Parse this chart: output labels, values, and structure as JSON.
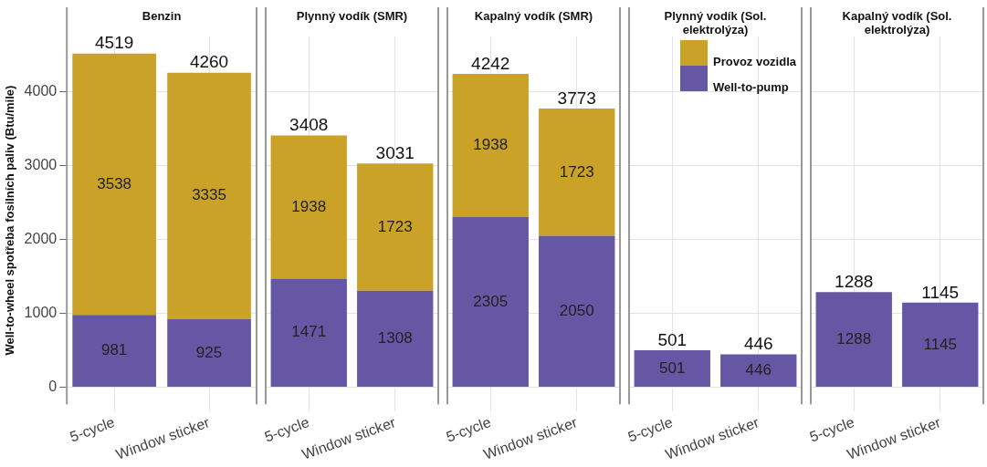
{
  "chart_data": [
    {
      "type": "bar",
      "title": "Benzin",
      "ylabel": "Well-to-wheel spotřeba fosilních paliv (Btu/mile)",
      "categories": [
        "5-cycle",
        "Window sticker"
      ],
      "stacked": true,
      "data_labels": true,
      "grid": true,
      "legend": false,
      "ylim": [
        -230,
        4750
      ],
      "yticks": [
        0,
        1000,
        2000,
        3000,
        4000
      ],
      "totals": [
        "4519",
        "4260"
      ],
      "series": [
        {
          "color": "#6557a3",
          "values": [
            981,
            925
          ]
        },
        {
          "color": "#c9a227",
          "values": [
            3538,
            3335
          ]
        }
      ]
    },
    {
      "type": "bar",
      "title": "Plynný vodík (SMR)",
      "categories": [
        "5-cycle",
        "Window sticker"
      ],
      "stacked": true,
      "data_labels": true,
      "grid": true,
      "legend": false,
      "tick_labels": "x",
      "ylim": [
        -230,
        4750
      ],
      "yticks": [
        0,
        1000,
        2000,
        3000,
        4000
      ],
      "totals": [
        "3408",
        "3031"
      ],
      "series": [
        {
          "color": "#6557a3",
          "values": [
            1471,
            1308
          ]
        },
        {
          "color": "#c9a227",
          "values": [
            1938,
            1723
          ]
        }
      ]
    },
    {
      "type": "bar",
      "title": "Kapalný vodík (SMR)",
      "categories": [
        "5-cycle",
        "Window sticker"
      ],
      "stacked": true,
      "data_labels": true,
      "grid": true,
      "legend": false,
      "tick_labels": "x",
      "ylim": [
        -230,
        4750
      ],
      "yticks": [
        0,
        1000,
        2000,
        3000,
        4000
      ],
      "totals": [
        "4242",
        "3773"
      ],
      "series": [
        {
          "color": "#6557a3",
          "values": [
            2305,
            2050
          ]
        },
        {
          "color": "#c9a227",
          "values": [
            1938,
            1723
          ]
        }
      ]
    },
    {
      "type": "bar",
      "title": "Plynný vodík (Sol. elektrolýza)",
      "categories": [
        "5-cycle",
        "Window sticker"
      ],
      "stacked": true,
      "data_labels": true,
      "grid": true,
      "legend": "top right",
      "tick_labels": "x",
      "ylim": [
        -230,
        4750
      ],
      "yticks": [
        0,
        1000,
        2000,
        3000,
        4000
      ],
      "totals": [
        "501",
        "446"
      ],
      "series": [
        {
          "name": "Well-to-pump",
          "color": "#6557a3",
          "values": [
            501,
            446
          ]
        },
        {
          "name": "Provoz vozidla",
          "color": "#c9a227",
          "values": [
            null,
            null
          ]
        }
      ]
    },
    {
      "type": "bar",
      "title": "Kapalný vodík (Sol. elektrolýza)",
      "categories": [
        "5-cycle",
        "Window sticker"
      ],
      "stacked": true,
      "data_labels": true,
      "grid": true,
      "legend": false,
      "tick_labels": "x",
      "ylim": [
        -230,
        4750
      ],
      "yticks": [
        0,
        1000,
        2000,
        3000,
        4000
      ],
      "totals": [
        "1288",
        "1145"
      ],
      "series": [
        {
          "color": "#6557a3",
          "values": [
            1288,
            1145
          ]
        },
        {
          "color": "#c9a227",
          "values": [
            null,
            null
          ]
        }
      ]
    }
  ]
}
